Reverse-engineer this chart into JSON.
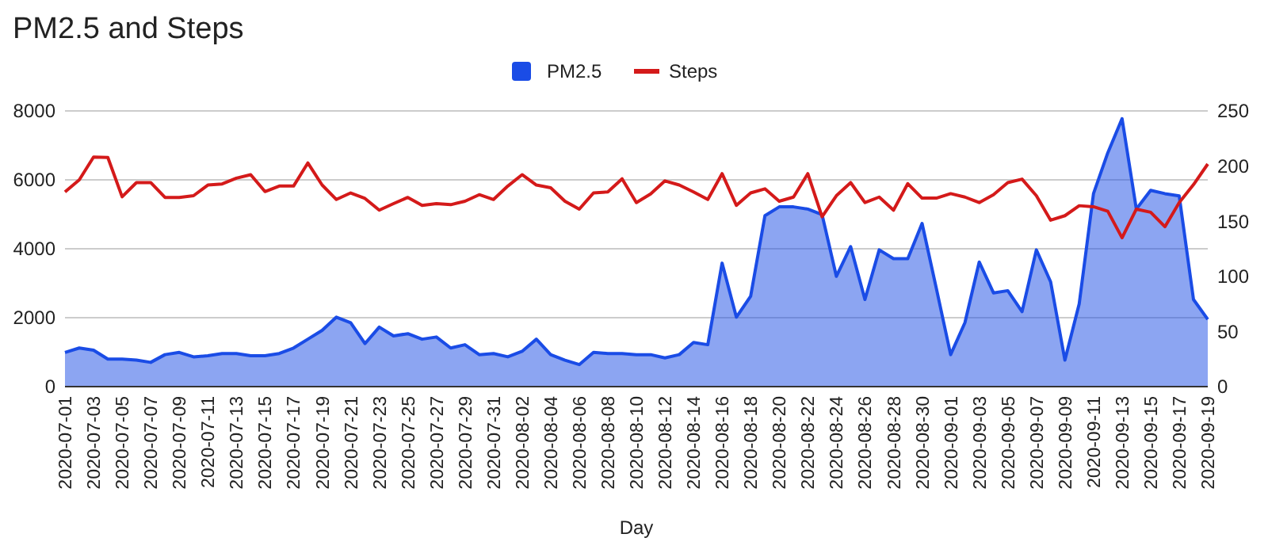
{
  "chart_data": {
    "type": "line",
    "title": "PM2.5 and Steps",
    "xlabel": "Day",
    "categories": [
      "2020-07-01",
      null,
      "2020-07-03",
      null,
      "2020-07-05",
      null,
      "2020-07-07",
      null,
      "2020-07-09",
      null,
      "2020-07-11",
      null,
      "2020-07-13",
      null,
      "2020-07-15",
      null,
      "2020-07-17",
      null,
      "2020-07-19",
      null,
      "2020-07-21",
      null,
      "2020-07-23",
      null,
      "2020-07-25",
      null,
      "2020-07-27",
      null,
      "2020-07-29",
      null,
      "2020-07-31",
      null,
      "2020-08-02",
      null,
      "2020-08-04",
      null,
      "2020-08-06",
      null,
      "2020-08-08",
      null,
      "2020-08-10",
      null,
      "2020-08-12",
      null,
      "2020-08-14",
      null,
      "2020-08-16",
      null,
      "2020-08-18",
      null,
      "2020-08-20",
      null,
      "2020-08-22",
      null,
      "2020-08-24",
      null,
      "2020-08-26",
      null,
      "2020-08-28",
      null,
      "2020-08-30",
      null,
      "2020-09-01",
      null,
      "2020-09-03",
      null,
      "2020-09-05",
      null,
      "2020-09-07",
      null,
      "2020-09-09",
      null,
      "2020-09-11",
      null,
      "2020-09-13",
      null,
      "2020-09-15",
      null,
      "2020-09-17",
      null,
      "2020-09-19"
    ],
    "series": [
      {
        "name": "PM2.5",
        "type": "area",
        "axis": "y2",
        "color": "#1a4ce6",
        "values": [
          31,
          35,
          33,
          25,
          25,
          24,
          22,
          29,
          31,
          27,
          28,
          30,
          30,
          28,
          28,
          30,
          35,
          43,
          51,
          63,
          58,
          39,
          54,
          46,
          48,
          43,
          45,
          35,
          38,
          29,
          30,
          27,
          32,
          43,
          29,
          24,
          20,
          31,
          30,
          30,
          29,
          29,
          26,
          29,
          40,
          38,
          112,
          63,
          82,
          155,
          163,
          163,
          161,
          156,
          100,
          127,
          79,
          124,
          116,
          116,
          148,
          89,
          29,
          58,
          113,
          85,
          87,
          68,
          124,
          95,
          24,
          75,
          175,
          212,
          243,
          161,
          178,
          175,
          173,
          79,
          61
        ]
      },
      {
        "name": "Steps",
        "type": "line",
        "color": "#d41a1a",
        "values": [
          5650,
          6000,
          6660,
          6650,
          5510,
          5920,
          5920,
          5490,
          5490,
          5540,
          5850,
          5880,
          6050,
          6150,
          5660,
          5820,
          5820,
          6490,
          5850,
          5430,
          5620,
          5460,
          5120,
          5310,
          5490,
          5260,
          5310,
          5280,
          5380,
          5570,
          5430,
          5820,
          6150,
          5850,
          5770,
          5380,
          5150,
          5620,
          5650,
          6030,
          5340,
          5590,
          5970,
          5850,
          5650,
          5430,
          6180,
          5260,
          5620,
          5740,
          5380,
          5500,
          6180,
          4930,
          5540,
          5920,
          5340,
          5500,
          5120,
          5890,
          5470,
          5470,
          5600,
          5500,
          5340,
          5570,
          5920,
          6020,
          5540,
          4830,
          4960,
          5250,
          5220,
          5090,
          4320,
          5150,
          5060,
          4640,
          5340,
          5860,
          6460
        ]
      }
    ],
    "ylim": [
      0,
      8000
    ],
    "yticks": [
      0,
      2000,
      4000,
      6000,
      8000
    ],
    "y2lim": [
      0,
      250
    ],
    "y2ticks": [
      0,
      50,
      100,
      150,
      200,
      250
    ],
    "grid": "y",
    "legend": "top",
    "marker": "none",
    "line_style": "solid"
  }
}
